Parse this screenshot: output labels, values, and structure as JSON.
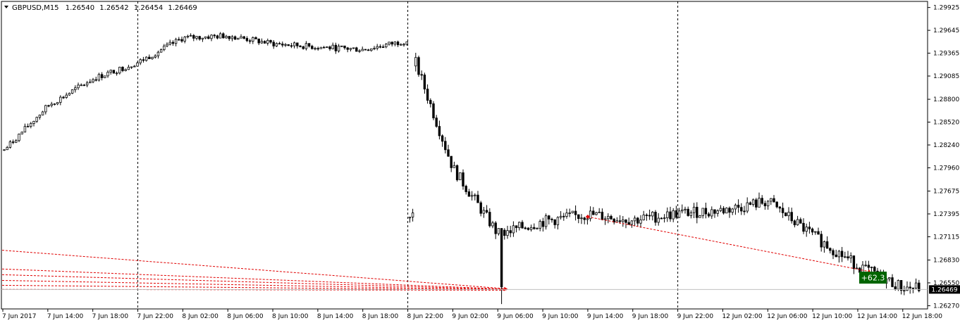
{
  "chart_data": {
    "type": "candlestick",
    "title": "GBPUSD,M15",
    "ohlc_header": [
      "1.26540",
      "1.26542",
      "1.26454",
      "1.26469"
    ],
    "current_price_label": "1.26469",
    "current_price": 1.26469,
    "ylim": [
      1.2626,
      1.2997
    ],
    "y_ticks": [
      "1.29925",
      "1.29645",
      "1.29365",
      "1.29085",
      "1.28800",
      "1.28520",
      "1.28240",
      "1.27960",
      "1.27675",
      "1.27395",
      "1.27115",
      "1.26830",
      "1.26550",
      "1.26270"
    ],
    "x_ticks": [
      "7 Jun 2017",
      "7 Jun 14:00",
      "7 Jun 18:00",
      "7 Jun 22:00",
      "8 Jun 02:00",
      "8 Jun 06:00",
      "8 Jun 10:00",
      "8 Jun 14:00",
      "8 Jun 18:00",
      "8 Jun 22:00",
      "9 Jun 02:00",
      "9 Jun 06:00",
      "9 Jun 10:00",
      "9 Jun 14:00",
      "9 Jun 18:00",
      "9 Jun 22:00",
      "12 Jun 02:00",
      "12 Jun 06:00",
      "12 Jun 10:00",
      "12 Jun 14:00",
      "12 Jun 18:00"
    ],
    "period_separators": [
      "7 Jun 22:00",
      "8 Jun 22:00",
      "9 Jun 22:00"
    ],
    "trend_path": [
      [
        "7 Jun 2017",
        1.2816
      ],
      [
        "7 Jun 14:00",
        1.2872
      ],
      [
        "7 Jun 18:00",
        1.2905
      ],
      [
        "7 Jun 22:00",
        1.2925
      ],
      [
        "8 Jun 02:00",
        1.2955
      ],
      [
        "8 Jun 06:00",
        1.2958
      ],
      [
        "8 Jun 10:00",
        1.2948
      ],
      [
        "8 Jun 14:00",
        1.2944
      ],
      [
        "8 Jun 18:00",
        1.2941
      ],
      [
        "8 Jun 22:00",
        1.2952
      ],
      [
        "9 Jun 02:00",
        1.2796
      ],
      [
        "9 Jun 06:00",
        1.2715
      ],
      [
        "9 Jun 10:00",
        1.273
      ],
      [
        "9 Jun 14:00",
        1.2739
      ],
      [
        "9 Jun 18:00",
        1.2732
      ],
      [
        "9 Jun 22:00",
        1.274
      ],
      [
        "12 Jun 02:00",
        1.2744
      ],
      [
        "12 Jun 06:00",
        1.2755
      ],
      [
        "12 Jun 10:00",
        1.2713
      ],
      [
        "12 Jun 14:00",
        1.2676
      ],
      [
        "12 Jun 18:00",
        1.2649
      ]
    ],
    "drop_gap": {
      "at": "8 Jun 22:00",
      "from": 1.2952,
      "to": 1.2735
    },
    "spike_low": {
      "at": "9 Jun 06:00",
      "low": 1.2629,
      "high": 1.2682
    },
    "history_lines": [
      {
        "start_price": 1.2695,
        "end_price": 1.26478
      },
      {
        "start_price": 1.2672,
        "end_price": 1.26474
      },
      {
        "start_price": 1.2665,
        "end_price": 1.2647
      },
      {
        "start_price": 1.2658,
        "end_price": 1.26466
      },
      {
        "start_price": 1.2652,
        "end_price": 1.26463
      },
      {
        "start_price": 1.2647,
        "end_price": 1.2646
      }
    ],
    "trade_line": {
      "start": [
        "9 Jun 14:00",
        1.2736
      ],
      "end": [
        "12 Jun 16:00",
        1.2669
      ]
    },
    "profit_label": "+62.3",
    "colors": {
      "candle": "#000000",
      "grid_separator": "#000000",
      "trade_line": "#e00000",
      "bid_line": "#c0c0c0",
      "profit_bg": "#006400",
      "price_tag_bg": "#000000"
    }
  }
}
